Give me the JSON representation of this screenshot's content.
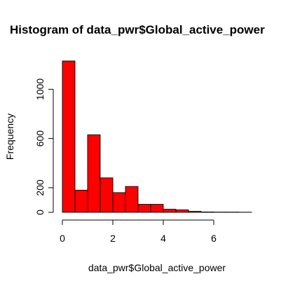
{
  "chart_data": {
    "type": "bar",
    "title": "Histogram of data_pwr$Global_active_power",
    "xlabel": "data_pwr$Global_active_power",
    "ylabel": "Frequency",
    "bin_edges": [
      0,
      0.5,
      1,
      1.5,
      2,
      2.5,
      3,
      3.5,
      4,
      4.5,
      5,
      5.5,
      6,
      6.5,
      7,
      7.5
    ],
    "values": [
      1230,
      180,
      630,
      280,
      160,
      210,
      65,
      65,
      25,
      20,
      8,
      3,
      2,
      2,
      1
    ],
    "xlim": [
      0,
      7.5
    ],
    "ylim": [
      0,
      1230
    ],
    "x_ticks": [
      0,
      2,
      4,
      6
    ],
    "x_tick_labels": [
      "0",
      "2",
      "4",
      "6"
    ],
    "y_ticks": [
      0,
      200,
      600,
      1000
    ],
    "y_tick_labels": [
      "0",
      "200",
      "600",
      "1000"
    ],
    "bar_fill": "#ff0000",
    "bar_stroke": "#000000",
    "grid": false,
    "legend": "none"
  }
}
